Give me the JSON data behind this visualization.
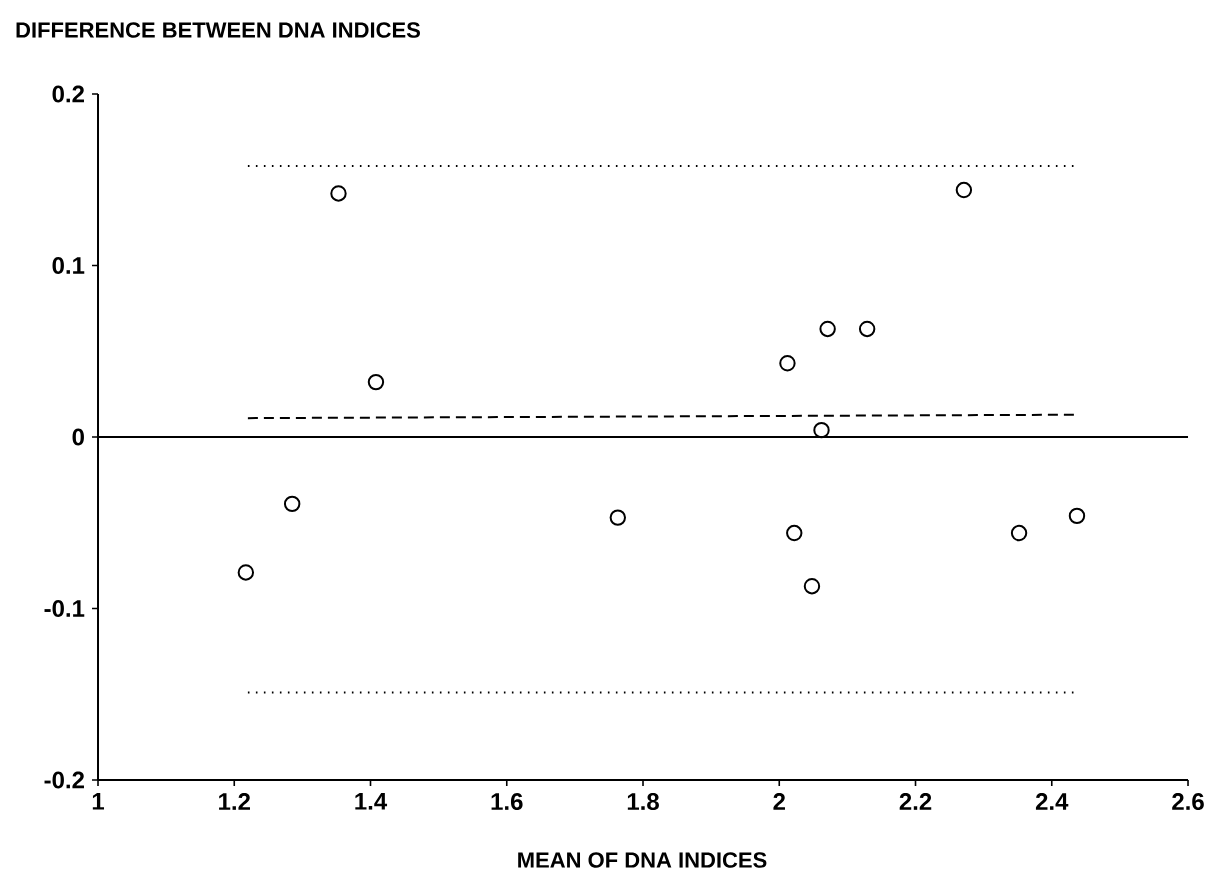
{
  "chart_data": {
    "type": "scatter",
    "ylabel": "DIFFERENCE BETWEEN DNA INDICES",
    "xlabel": "MEAN OF DNA INDICES",
    "xlim": [
      1,
      2.6
    ],
    "ylim": [
      -0.2,
      0.2
    ],
    "xticks": [
      1,
      1.2,
      1.4,
      1.6,
      1.8,
      2,
      2.2,
      2.4,
      2.6
    ],
    "yticks": [
      -0.2,
      -0.1,
      0,
      0.1,
      0.2
    ],
    "marker": "circle",
    "series": [
      {
        "color": "#000000",
        "x": [
          1.217,
          1.285,
          1.353,
          1.408,
          1.763,
          2.012,
          2.022,
          2.048,
          2.062,
          2.071,
          2.129,
          2.271,
          2.352,
          2.437
        ],
        "values": [
          -0.079,
          -0.039,
          0.142,
          0.032,
          -0.047,
          0.043,
          -0.056,
          -0.087,
          0.004,
          0.063,
          0.063,
          0.144,
          -0.056,
          -0.046
        ]
      },
      {
        "type": "line",
        "marker": "none",
        "color": "#000000",
        "line_style": "dotted",
        "x": [
          1.22,
          2.44
        ],
        "values": [
          0.158,
          0.158
        ]
      },
      {
        "type": "line",
        "marker": "none",
        "color": "#000000",
        "line_style": "dashed",
        "x": [
          1.22,
          2.44
        ],
        "values": [
          0.011,
          0.013
        ]
      },
      {
        "type": "line",
        "marker": "none",
        "color": "#000000",
        "line_style": "dotted",
        "x": [
          1.22,
          2.44
        ],
        "values": [
          -0.149,
          -0.149
        ]
      }
    ],
    "ref_lines": [
      {
        "axis": "y",
        "value": 0,
        "color": "#000000",
        "line_style": "solid"
      }
    ]
  }
}
